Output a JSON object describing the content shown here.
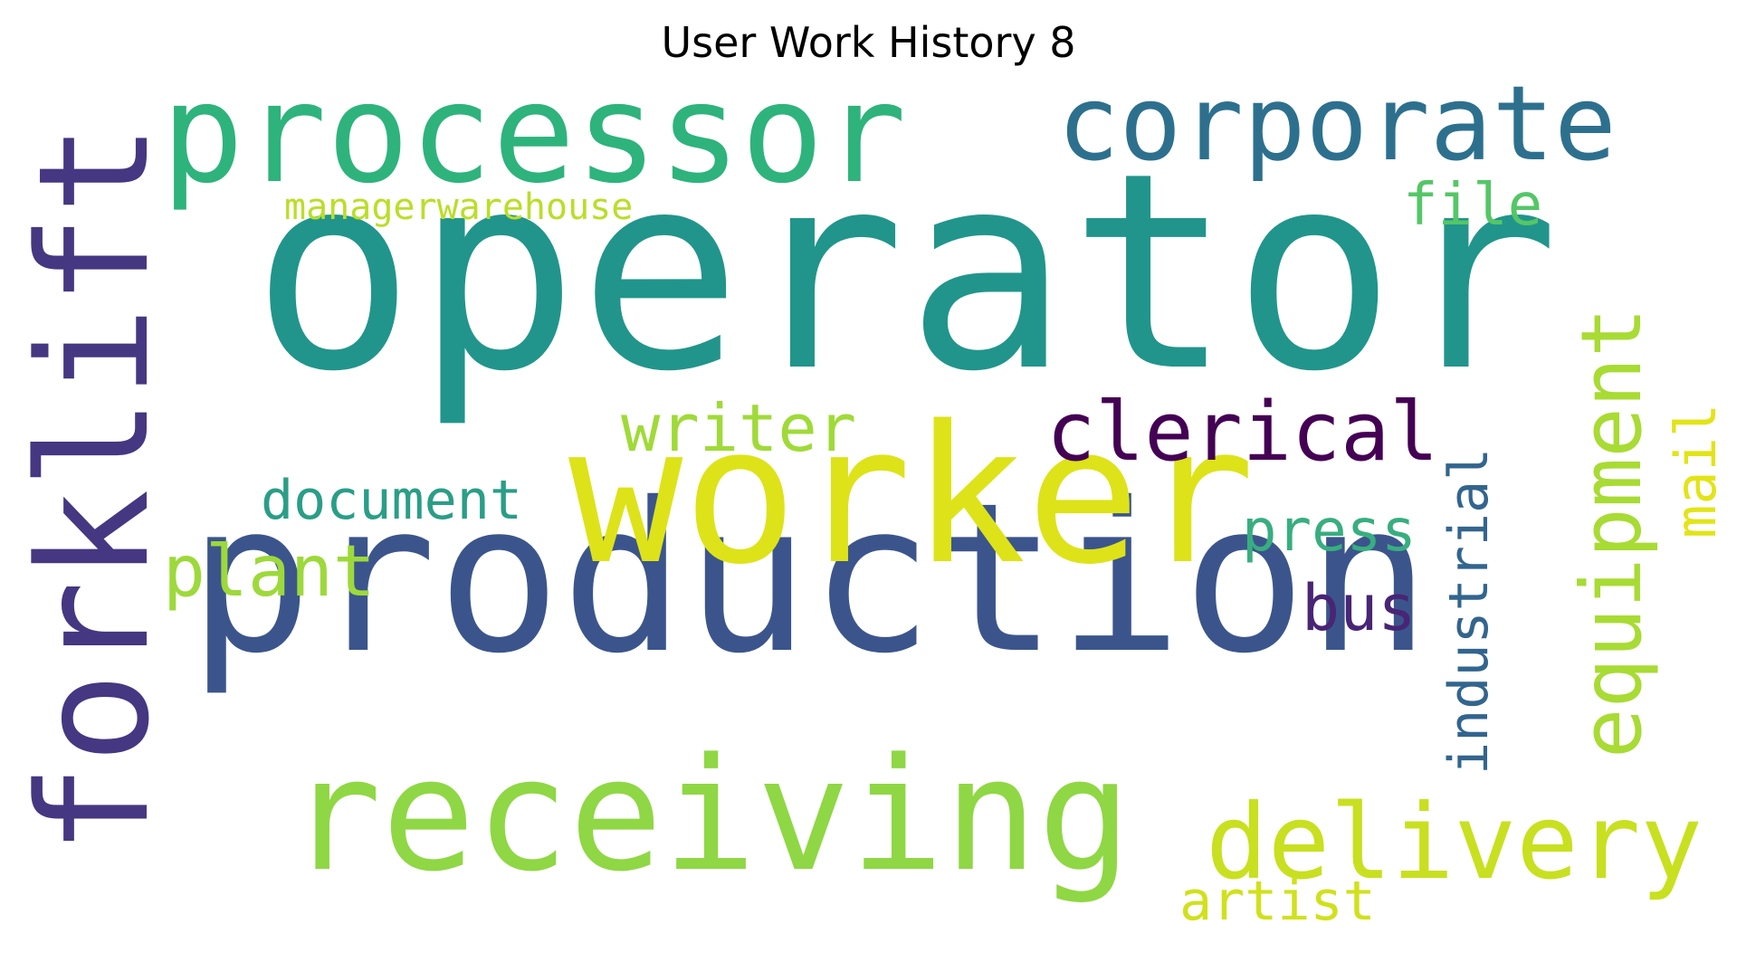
{
  "title": "User Work History 8",
  "words": [
    {
      "text": "operator",
      "color": "#21958b"
    },
    {
      "text": "production",
      "color": "#3b558c"
    },
    {
      "text": "worker",
      "color": "#dde318"
    },
    {
      "text": "forklift",
      "color": "#453781"
    },
    {
      "text": "receiving",
      "color": "#8fd744"
    },
    {
      "text": "processor",
      "color": "#2eb37c"
    },
    {
      "text": "corporate",
      "color": "#2d708e"
    },
    {
      "text": "delivery",
      "color": "#c8e020"
    },
    {
      "text": "clerical",
      "color": "#440154"
    },
    {
      "text": "equipment",
      "color": "#a8db34"
    },
    {
      "text": "writer",
      "color": "#a0da39"
    },
    {
      "text": "plant",
      "color": "#9dd93b"
    },
    {
      "text": "document",
      "color": "#2a9e87"
    },
    {
      "text": "press",
      "color": "#38ae80"
    },
    {
      "text": "bus",
      "color": "#482575"
    },
    {
      "text": "industrial",
      "color": "#32658e"
    },
    {
      "text": "mail",
      "color": "#e2e418"
    },
    {
      "text": "artist",
      "color": "#d0e11c"
    },
    {
      "text": "file",
      "color": "#55c667"
    },
    {
      "text": "managerwarehouse",
      "color": "#bade28"
    }
  ]
}
